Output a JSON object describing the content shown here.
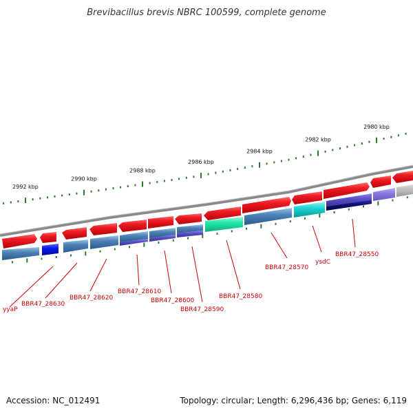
{
  "title": "Brevibacillus brevis NBRC 100599, complete genome",
  "footer": {
    "accession": "Accession: NC_012491",
    "summary": "Topology: circular; Length: 6,296,436 bp; Genes: 6,119"
  },
  "ruler": {
    "ticks": [
      {
        "kbp": 2992,
        "label": "2992 kbp"
      },
      {
        "kbp": 2990,
        "label": "2990 kbp"
      },
      {
        "kbp": 2988,
        "label": "2988 kbp"
      },
      {
        "kbp": 2986,
        "label": "2986 kbp"
      },
      {
        "kbp": 2984,
        "label": "2984 kbp"
      },
      {
        "kbp": 2982,
        "label": "2982 kbp"
      },
      {
        "kbp": 2980,
        "label": "2980 kbp"
      }
    ]
  },
  "colors": {
    "cds_forward": "#e8161f",
    "cds_steelblue": "#4a7fb5",
    "cds_blue": "#0a18e8",
    "cds_teal": "#1de8a8",
    "cds_cyan": "#18d6d6",
    "cds_purple": "#5a4fc8",
    "cds_navy": "#0a0a6a",
    "cds_lavender": "#8a7ae0",
    "cds_grey": "#b8b8b8",
    "label_red": "#cc0000",
    "ruler_green": "#2a7a2a",
    "backbone": "#888888"
  },
  "genes": [
    {
      "name": "yyaP",
      "label": "yyaP"
    },
    {
      "name": "BBR47_28630",
      "label": "BBR47_28630"
    },
    {
      "name": "BBR47_28620",
      "label": "BBR47_28620"
    },
    {
      "name": "BBR47_28610",
      "label": "BBR47_28610"
    },
    {
      "name": "BBR47_28600",
      "label": "BBR47_28600"
    },
    {
      "name": "BBR47_28590",
      "label": "BBR47_28590"
    },
    {
      "name": "BBR47_28580",
      "label": "BBR47_28580"
    },
    {
      "name": "BBR47_28570",
      "label": "BBR47_28570"
    },
    {
      "name": "ysdC",
      "label": "ysdC"
    },
    {
      "name": "BBR47_28550",
      "label": "BBR47_28550"
    }
  ]
}
